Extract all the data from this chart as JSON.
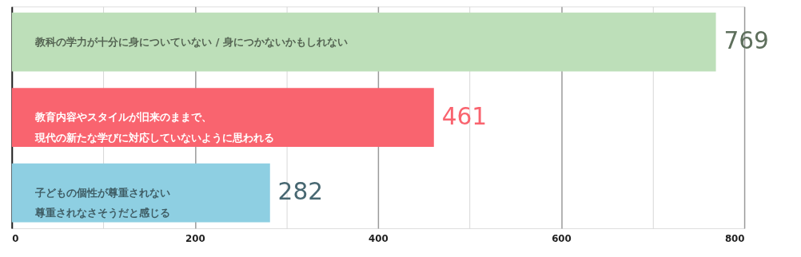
{
  "chart_data": {
    "type": "bar",
    "orientation": "horizontal",
    "categories": [
      "教科の学力が十分に身についていない / 身につかないかもしれない",
      "教育内容やスタイルが旧来のままで、現代の新たな学びに対応していないように思われる",
      "子どもの個性が尊重されない尊重されなさそうだと感じる"
    ],
    "values": [
      769,
      461,
      282
    ],
    "colors": [
      "#bddfb9",
      "#f9646f",
      "#8ecfe2"
    ],
    "data_labels": true,
    "xlim": [
      0,
      800
    ],
    "xticks": [
      0,
      {
        "value": 100,
        "label": null
      },
      200,
      {
        "value": 300,
        "label": null
      },
      400,
      {
        "value": 500,
        "label": null
      },
      600,
      {
        "value": 700,
        "label": null
      },
      800
    ],
    "grid": "x",
    "tick_labels": "x"
  }
}
